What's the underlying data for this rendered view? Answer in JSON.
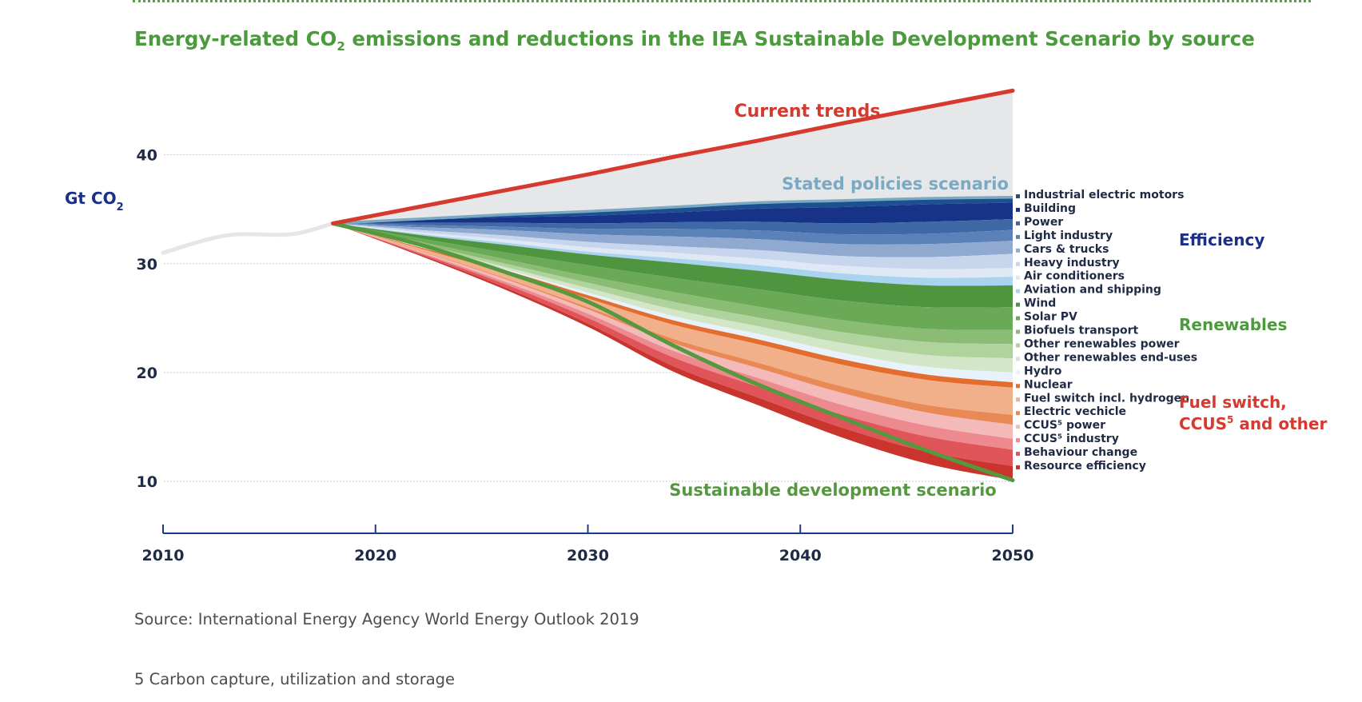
{
  "page": {
    "title": "Energy-related CO",
    "title_sub": "2",
    "title_rest": " emissions and reductions in the IEA Sustainable Development Scenario by source",
    "source": "Source: International Energy Agency World Energy Outlook 2019",
    "footnote": "5 Carbon capture, utilization and storage"
  },
  "chart_data": {
    "type": "area",
    "ylabel": "Gt CO",
    "ylabel_sub": "2",
    "xlim": [
      2010,
      2050
    ],
    "ylim": [
      5,
      46
    ],
    "x_ticks": [
      "2010",
      "2020",
      "2030",
      "2040",
      "2050"
    ],
    "y_ticks": [
      "10",
      "20",
      "30",
      "40"
    ],
    "grid": "horizontal dotted",
    "x": [
      2018,
      2022,
      2026,
      2030,
      2034,
      2038,
      2042,
      2046,
      2050
    ],
    "history": {
      "x": [
        2010,
        2013,
        2016,
        2018
      ],
      "values": [
        31.0,
        32.6,
        32.7,
        33.7
      ],
      "color": "#e6e6e6"
    },
    "current_trends": {
      "label": "Current trends",
      "values": [
        33.7,
        35.2,
        36.7,
        38.2,
        39.8,
        41.3,
        42.9,
        44.4,
        45.9
      ],
      "color": "#d63a2f"
    },
    "stated_policies": {
      "label": "Stated policies scenario",
      "values": [
        33.7,
        34.1,
        34.5,
        34.8,
        35.2,
        35.6,
        35.8,
        36.0,
        36.1
      ],
      "color": "#7aa9c3"
    },
    "sustainable_development": {
      "label": "Sustainable development scenario",
      "values": [
        33.7,
        31.8,
        29.3,
        26.5,
        22.5,
        18.9,
        15.8,
        12.8,
        10.1
      ],
      "color": "#56983f"
    },
    "series": [
      {
        "name": "Industrial electric motors",
        "group": "efficiency",
        "color": "#1d4f91",
        "values": [
          0,
          0.1,
          0.25,
          0.4,
          0.5,
          0.55,
          0.6,
          0.55,
          0.5
        ]
      },
      {
        "name": "Building",
        "group": "efficiency",
        "color": "#173387",
        "values": [
          0,
          0.25,
          0.5,
          0.7,
          0.9,
          1.2,
          1.5,
          1.6,
          1.5
        ]
      },
      {
        "name": "Power",
        "group": "efficiency",
        "color": "#3f68a6",
        "values": [
          0,
          0.2,
          0.35,
          0.5,
          0.6,
          0.8,
          1.0,
          1.1,
          1.0
        ]
      },
      {
        "name": "Light industry",
        "group": "efficiency",
        "color": "#5b82b8",
        "values": [
          0,
          0.2,
          0.3,
          0.5,
          0.7,
          0.8,
          0.9,
          0.95,
          1.0
        ]
      },
      {
        "name": "Cars & trucks",
        "group": "efficiency",
        "color": "#8fa9d1",
        "values": [
          0,
          0.25,
          0.5,
          0.7,
          0.9,
          1.0,
          1.1,
          1.2,
          1.2
        ]
      },
      {
        "name": "Heavy industry",
        "group": "efficiency",
        "color": "#c7d6ec",
        "values": [
          0,
          0.2,
          0.35,
          0.5,
          0.6,
          0.8,
          0.9,
          1.1,
          1.3
        ]
      },
      {
        "name": "Air conditioners",
        "group": "efficiency",
        "color": "#dfe8f5",
        "values": [
          0,
          0.15,
          0.3,
          0.4,
          0.5,
          0.6,
          0.7,
          0.8,
          0.8
        ]
      },
      {
        "name": "Aviation and shipping",
        "group": "efficiency",
        "color": "#a9d3ee",
        "values": [
          0,
          0.1,
          0.2,
          0.25,
          0.4,
          0.5,
          0.6,
          0.7,
          0.8
        ]
      },
      {
        "name": "Wind",
        "group": "renewables",
        "color": "#4f9540",
        "values": [
          0,
          0.3,
          0.7,
          1.0,
          1.4,
          1.7,
          1.9,
          2.0,
          2.0
        ]
      },
      {
        "name": "Solar PV",
        "group": "renewables",
        "color": "#6aa955",
        "values": [
          0,
          0.3,
          0.6,
          1.0,
          1.3,
          1.6,
          1.8,
          2.0,
          2.1
        ]
      },
      {
        "name": "Biofuels transport",
        "group": "renewables",
        "color": "#8abc74",
        "values": [
          0,
          0.2,
          0.4,
          0.6,
          0.9,
          1.0,
          1.1,
          1.2,
          1.3
        ]
      },
      {
        "name": "Other renewables power",
        "group": "renewables",
        "color": "#b0d29d",
        "values": [
          0,
          0.15,
          0.3,
          0.5,
          0.7,
          0.8,
          1.0,
          1.2,
          1.3
        ]
      },
      {
        "name": "Other renewables end-uses",
        "group": "renewables",
        "color": "#d3e6c8",
        "values": [
          0,
          0.1,
          0.2,
          0.4,
          0.6,
          0.7,
          0.9,
          1.1,
          1.3
        ]
      },
      {
        "name": "Hydro",
        "group": "renewables",
        "color": "#e8f2fb",
        "values": [
          0,
          0.05,
          0.1,
          0.25,
          0.4,
          0.5,
          0.6,
          0.7,
          0.9
        ]
      },
      {
        "name": "Nuclear",
        "group": "fuel",
        "color": "#e36d2e",
        "values": [
          0,
          0.1,
          0.2,
          0.3,
          0.4,
          0.45,
          0.5,
          0.5,
          0.5
        ]
      },
      {
        "name": "Fuel switch incl. hydrogen",
        "group": "fuel",
        "color": "#f2b08a",
        "values": [
          0,
          0.2,
          0.5,
          0.8,
          1.3,
          1.7,
          2.0,
          2.3,
          2.5
        ]
      },
      {
        "name": "Electric vechicle",
        "group": "fuel",
        "color": "#e98a56",
        "values": [
          0,
          0.05,
          0.1,
          0.2,
          0.4,
          0.5,
          0.6,
          0.7,
          0.9
        ]
      },
      {
        "name": "CCUS⁵ power",
        "group": "fuel",
        "color": "#f4b9b9",
        "values": [
          0,
          0.1,
          0.25,
          0.4,
          0.7,
          0.9,
          1.1,
          1.2,
          1.3
        ]
      },
      {
        "name": "CCUS⁵ industry",
        "group": "fuel",
        "color": "#ec8a8f",
        "values": [
          0,
          0.1,
          0.2,
          0.4,
          0.6,
          0.8,
          0.9,
          1.0,
          1.0
        ]
      },
      {
        "name": "Behaviour change",
        "group": "fuel",
        "color": "#e0555a",
        "values": [
          0,
          0.1,
          0.3,
          0.5,
          0.8,
          1.0,
          1.2,
          1.4,
          1.5
        ]
      },
      {
        "name": "Resource efficiency",
        "group": "fuel",
        "color": "#c9342d",
        "values": [
          0,
          0.1,
          0.2,
          0.3,
          0.5,
          0.7,
          0.9,
          1.1,
          1.3
        ]
      }
    ],
    "groups": [
      {
        "key": "efficiency",
        "label": "Efficiency",
        "color": "#1b2f88"
      },
      {
        "key": "renewables",
        "label": "Renewables",
        "color": "#4c9a3e"
      },
      {
        "key": "fuel",
        "label": "Fuel switch,",
        "label2": "CCUS",
        "label2_sup": "5",
        "label2_rest": " and other",
        "color": "#d63a2f"
      }
    ],
    "legend_position": "right"
  }
}
